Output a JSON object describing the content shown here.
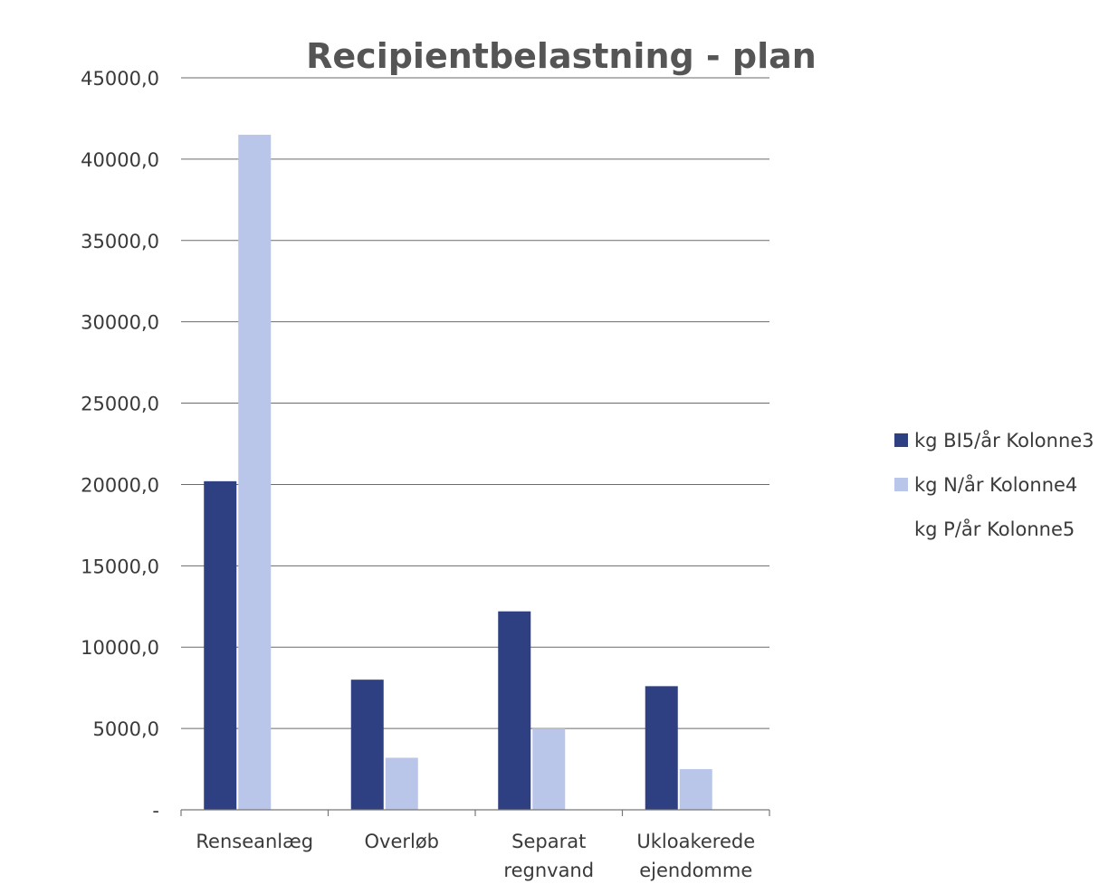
{
  "chart_data": {
    "type": "bar",
    "title": "Recipientbelastning - plan",
    "xlabel": "",
    "ylabel": "",
    "categories": [
      [
        "Renseanlæg"
      ],
      [
        "Overløb"
      ],
      [
        "Separat",
        "regnvand"
      ],
      [
        "Ukloakerede",
        "ejendomme"
      ]
    ],
    "series": [
      {
        "name": "kg BI5/år Kolonne3",
        "color": "#2e3f82",
        "values": [
          20200,
          8000,
          12200,
          7600
        ]
      },
      {
        "name": "kg N/år Kolonne4",
        "color": "#b9c6ea",
        "values": [
          41500,
          3200,
          5000,
          2500
        ]
      },
      {
        "name": "kg P/år Kolonne5",
        "color": "#ffffff",
        "values": [
          0,
          0,
          0,
          0
        ]
      }
    ],
    "ylim": [
      0,
      45000
    ],
    "yticks": [
      {
        "value": 0,
        "label": "-"
      },
      {
        "value": 5000,
        "label": "5000,0"
      },
      {
        "value": 10000,
        "label": "10000,0"
      },
      {
        "value": 15000,
        "label": "15000,0"
      },
      {
        "value": 20000,
        "label": "20000,0"
      },
      {
        "value": 25000,
        "label": "25000,0"
      },
      {
        "value": 30000,
        "label": "30000,0"
      },
      {
        "value": 35000,
        "label": "35000,0"
      },
      {
        "value": 40000,
        "label": "40000,0"
      },
      {
        "value": 45000,
        "label": "45000,0"
      }
    ],
    "grid": true,
    "legend_position": "right"
  }
}
